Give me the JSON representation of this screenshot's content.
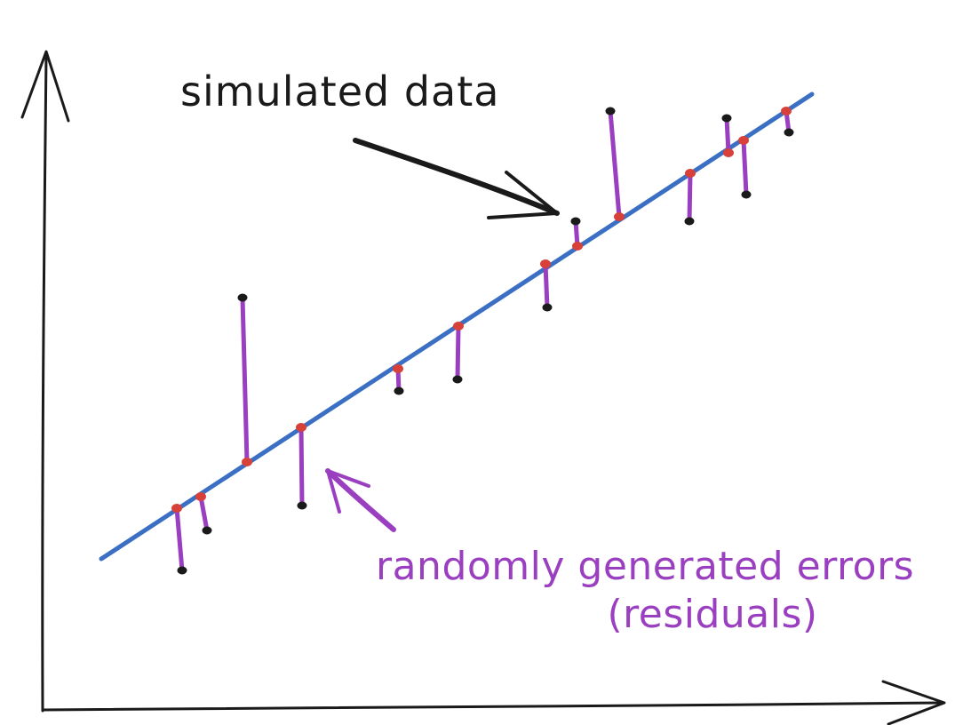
{
  "labels": {
    "simulated_data": "simulated data",
    "errors_line1": "randomly generated errors",
    "errors_line2": "(residuals)"
  },
  "colors": {
    "axis": "#1a1a1a",
    "regression_line": "#3a6fc4",
    "residual": "#9a3fc0",
    "fitted_point": "#d8403a",
    "data_point": "#1a1a1a",
    "simulated_label": "#1a1a1a",
    "errors_label": "#9a3fc0"
  },
  "points": [
    {
      "fitted": [
        199,
        572
      ],
      "observed": [
        205,
        642
      ]
    },
    {
      "fitted": [
        226,
        559
      ],
      "observed": [
        233,
        597
      ]
    },
    {
      "fitted": [
        278,
        520
      ],
      "observed": [
        273,
        335
      ]
    },
    {
      "fitted": [
        339,
        481
      ],
      "observed": [
        340,
        569
      ]
    },
    {
      "fitted": [
        448,
        415
      ],
      "observed": [
        449,
        440
      ]
    },
    {
      "fitted": [
        516,
        367
      ],
      "observed": [
        515,
        427
      ]
    },
    {
      "fitted": [
        614,
        297
      ],
      "observed": [
        616,
        346
      ]
    },
    {
      "fitted": [
        650,
        277
      ],
      "observed": [
        648,
        249
      ]
    },
    {
      "fitted": [
        697,
        244
      ],
      "observed": [
        687,
        125
      ]
    },
    {
      "fitted": [
        777,
        195
      ],
      "observed": [
        776,
        249
      ]
    },
    {
      "fitted": [
        820,
        172
      ],
      "observed": [
        818,
        133
      ]
    },
    {
      "fitted": [
        837,
        158
      ],
      "observed": [
        840,
        219
      ]
    },
    {
      "fitted": [
        885,
        125
      ],
      "observed": [
        888,
        149
      ]
    }
  ]
}
